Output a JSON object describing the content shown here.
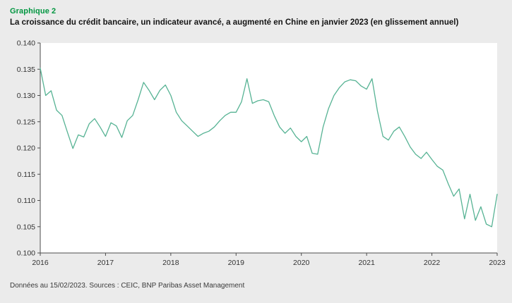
{
  "header": {
    "kicker": "Graphique 2",
    "title": "La croissance du crédit bancaire, un indicateur avancé, a augmenté en Chine en janvier 2023 (en glissement annuel)"
  },
  "footer": {
    "note": "Données au 15/02/2023. Sources : CEIC, BNP Paribas Asset Management"
  },
  "colors": {
    "kicker_green": "#009640",
    "background": "#ebebeb",
    "plot_background": "#ffffff",
    "axis": "#4d4d4d",
    "tick_text": "#333333",
    "line": "#57b394"
  },
  "chart_data": {
    "type": "line",
    "title": "La croissance du crédit bancaire, un indicateur avancé, a augmenté en Chine en janvier 2023 (en glissement annuel)",
    "xlabel": "",
    "ylabel": "",
    "xlim": [
      2016,
      2023
    ],
    "ylim": [
      0.1,
      0.14
    ],
    "x_ticks": [
      "2016",
      "2017",
      "2018",
      "2019",
      "2020",
      "2021",
      "2022",
      "2023"
    ],
    "y_ticks": [
      0.1,
      0.105,
      0.11,
      0.115,
      0.12,
      0.125,
      0.13,
      0.135,
      0.14
    ],
    "grid": false,
    "legend": "none",
    "x_frequency": "monthly",
    "x_monthly_start": "2016-01",
    "x_monthly_end": "2023-01",
    "series": [
      {
        "color": "#57b394",
        "values": [
          0.1352,
          0.13,
          0.1309,
          0.1272,
          0.1262,
          0.123,
          0.1199,
          0.1225,
          0.1221,
          0.1246,
          0.1256,
          0.124,
          0.1222,
          0.1248,
          0.1242,
          0.122,
          0.1252,
          0.1262,
          0.1292,
          0.1325,
          0.131,
          0.1292,
          0.131,
          0.132,
          0.13,
          0.1268,
          0.1252,
          0.1242,
          0.1232,
          0.1222,
          0.1228,
          0.1232,
          0.124,
          0.1252,
          0.1262,
          0.1268,
          0.1268,
          0.1288,
          0.1332,
          0.1285,
          0.129,
          0.1292,
          0.1288,
          0.1262,
          0.124,
          0.1228,
          0.1238,
          0.1222,
          0.1212,
          0.1222,
          0.119,
          0.1188,
          0.124,
          0.1275,
          0.13,
          0.1315,
          0.1326,
          0.133,
          0.1328,
          0.1318,
          0.1312,
          0.1332,
          0.127,
          0.1222,
          0.1215,
          0.1232,
          0.124,
          0.1222,
          0.1202,
          0.1188,
          0.118,
          0.1192,
          0.1178,
          0.1165,
          0.1158,
          0.1132,
          0.1108,
          0.1122,
          0.1065,
          0.1112,
          0.1062,
          0.1088,
          0.1055,
          0.105,
          0.1112
        ]
      }
    ]
  }
}
